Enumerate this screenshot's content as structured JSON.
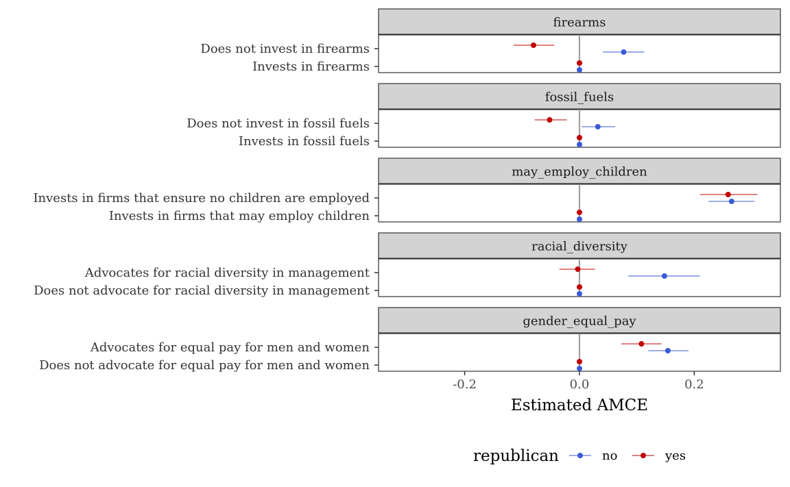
{
  "chart_data": {
    "type": "scatter",
    "subtype": "coefficient-plot-with-error-bars",
    "xlabel": "Estimated AMCE",
    "xlim": [
      -0.35,
      0.35
    ],
    "xticks": [
      -0.2,
      0.0,
      0.2
    ],
    "xtick_labels": [
      "-0.2",
      "0.0",
      "0.2"
    ],
    "reference_line_x": 0.0,
    "legend": {
      "title": "republican",
      "placement": "bottom",
      "entries": [
        {
          "label": "no",
          "color": "#3a5bd9"
        },
        {
          "label": "yes",
          "color": "#c00000"
        }
      ]
    },
    "panels": [
      {
        "strip": "firearms",
        "levels": [
          {
            "label": "Does not invest in firearms",
            "no": {
              "est": 0.077,
              "lo": 0.041,
              "hi": 0.113
            },
            "yes": {
              "est": -0.08,
              "lo": -0.115,
              "hi": -0.044
            }
          },
          {
            "label": "Invests in firearms",
            "no": {
              "est": 0.0,
              "lo": 0.0,
              "hi": 0.0
            },
            "yes": {
              "est": 0.0,
              "lo": 0.0,
              "hi": 0.0
            }
          }
        ]
      },
      {
        "strip": "fossil_fuels",
        "levels": [
          {
            "label": "Does not invest in fossil fuels",
            "no": {
              "est": 0.032,
              "lo": 0.004,
              "hi": 0.062
            },
            "yes": {
              "est": -0.052,
              "lo": -0.078,
              "hi": -0.022
            }
          },
          {
            "label": "Invests in fossil fuels",
            "no": {
              "est": 0.0,
              "lo": 0.0,
              "hi": 0.0
            },
            "yes": {
              "est": 0.0,
              "lo": 0.0,
              "hi": 0.0
            }
          }
        ]
      },
      {
        "strip": "may_employ_children",
        "levels": [
          {
            "label": "Invests in firms that ensure no children are employed",
            "no": {
              "est": 0.265,
              "lo": 0.225,
              "hi": 0.305
            },
            "yes": {
              "est": 0.259,
              "lo": 0.21,
              "hi": 0.31
            }
          },
          {
            "label": "Invests in firms that may employ children",
            "no": {
              "est": 0.0,
              "lo": 0.0,
              "hi": 0.0
            },
            "yes": {
              "est": 0.0,
              "lo": 0.0,
              "hi": 0.0
            }
          }
        ]
      },
      {
        "strip": "racial_diversity",
        "levels": [
          {
            "label": "Advocates for racial diversity in management",
            "no": {
              "est": 0.148,
              "lo": 0.085,
              "hi": 0.21
            },
            "yes": {
              "est": -0.003,
              "lo": -0.035,
              "hi": 0.027
            }
          },
          {
            "label": "Does not advocate for racial diversity in management",
            "no": {
              "est": 0.0,
              "lo": 0.0,
              "hi": 0.0
            },
            "yes": {
              "est": 0.0,
              "lo": 0.0,
              "hi": 0.0
            }
          }
        ]
      },
      {
        "strip": "gender_equal_pay",
        "levels": [
          {
            "label": "Advocates for equal pay for men and women",
            "no": {
              "est": 0.154,
              "lo": 0.12,
              "hi": 0.19
            },
            "yes": {
              "est": 0.108,
              "lo": 0.073,
              "hi": 0.143
            }
          },
          {
            "label": "Does not advocate for equal pay for men and women",
            "no": {
              "est": 0.0,
              "lo": 0.0,
              "hi": 0.0
            },
            "yes": {
              "est": 0.0,
              "lo": 0.0,
              "hi": 0.0
            }
          }
        ]
      }
    ]
  }
}
